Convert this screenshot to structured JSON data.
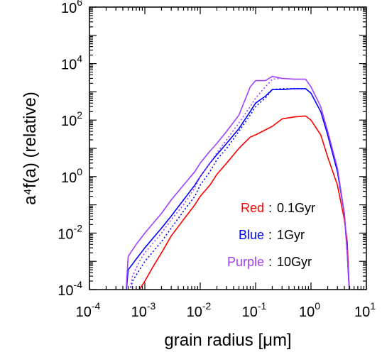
{
  "chart_data": {
    "type": "line",
    "title": "",
    "xlabel": "grain radius [μm]",
    "ylabel": "a⁴f(a) (relative)",
    "xscale": "log",
    "yscale": "log",
    "xlim": [
      0.0001,
      10
    ],
    "ylim": [
      0.0001,
      1000000
    ],
    "grid": false,
    "x_ticks": [
      {
        "value": 0.0001,
        "base": "10",
        "exp": "-4"
      },
      {
        "value": 0.001,
        "base": "10",
        "exp": "-3"
      },
      {
        "value": 0.01,
        "base": "10",
        "exp": "-2"
      },
      {
        "value": 0.1,
        "base": "10",
        "exp": "-1"
      },
      {
        "value": 1,
        "base": "10",
        "exp": "0"
      },
      {
        "value": 10,
        "base": "10",
        "exp": "1"
      }
    ],
    "y_ticks": [
      {
        "value": 0.0001,
        "base": "10",
        "exp": "-4"
      },
      {
        "value": 0.01,
        "base": "10",
        "exp": "-2"
      },
      {
        "value": 1,
        "base": "10",
        "exp": "0"
      },
      {
        "value": 100,
        "base": "10",
        "exp": "2"
      },
      {
        "value": 10000,
        "base": "10",
        "exp": "4"
      },
      {
        "value": 1000000,
        "base": "10",
        "exp": "6"
      }
    ],
    "legend": {
      "placement": "bottom-right",
      "entries": [
        {
          "label": "Red",
          "sep": ":",
          "value": "0.1Gyr",
          "color": "#ff0000"
        },
        {
          "label": "Blue",
          "sep": ":",
          "value": "1Gyr",
          "color": "#0000ff"
        },
        {
          "label": "Purple",
          "sep": ":",
          "value": "10Gyr",
          "color": "#a040ff"
        }
      ]
    },
    "series": [
      {
        "color": "#ff0000",
        "style": "solid",
        "points": [
          [
            0.00065,
            6e-05
          ],
          [
            0.0008,
            0.0001
          ],
          [
            0.001,
            0.0002
          ],
          [
            0.0015,
            0.0008
          ],
          [
            0.002,
            0.002
          ],
          [
            0.003,
            0.008
          ],
          [
            0.005,
            0.03
          ],
          [
            0.008,
            0.1
          ],
          [
            0.01,
            0.2
          ],
          [
            0.015,
            0.5
          ],
          [
            0.02,
            1.2
          ],
          [
            0.03,
            3
          ],
          [
            0.05,
            10
          ],
          [
            0.08,
            25
          ],
          [
            0.1,
            30
          ],
          [
            0.15,
            45
          ],
          [
            0.2,
            60
          ],
          [
            0.3,
            110
          ],
          [
            0.5,
            130
          ],
          [
            0.8,
            140
          ],
          [
            1.0,
            100
          ],
          [
            1.5,
            30
          ],
          [
            2.0,
            5
          ],
          [
            3.0,
            0.5
          ],
          [
            4.0,
            0.03
          ],
          [
            4.5,
            0.005
          ],
          [
            5.0,
            5e-05
          ]
        ]
      },
      {
        "color": "#0000ff",
        "style": "solid",
        "points": [
          [
            0.00045,
            5e-05
          ],
          [
            0.0005,
            0.0005
          ],
          [
            0.0007,
            0.0012
          ],
          [
            0.001,
            0.003
          ],
          [
            0.002,
            0.015
          ],
          [
            0.003,
            0.04
          ],
          [
            0.005,
            0.15
          ],
          [
            0.008,
            0.5
          ],
          [
            0.01,
            1
          ],
          [
            0.015,
            3
          ],
          [
            0.02,
            6
          ],
          [
            0.03,
            15
          ],
          [
            0.05,
            50
          ],
          [
            0.08,
            200
          ],
          [
            0.1,
            400
          ],
          [
            0.15,
            700
          ],
          [
            0.2,
            1200
          ],
          [
            0.3,
            1200
          ],
          [
            0.5,
            1300
          ],
          [
            0.8,
            1300
          ],
          [
            1.0,
            900
          ],
          [
            1.5,
            200
          ],
          [
            2.0,
            30
          ],
          [
            3.0,
            1.5
          ],
          [
            4.0,
            0.05
          ],
          [
            4.5,
            0.002
          ],
          [
            5.0,
            5e-05
          ]
        ]
      },
      {
        "color": "#0000ff",
        "style": "dotted",
        "points": [
          [
            0.0005,
            5e-05
          ],
          [
            0.0006,
            0.0002
          ],
          [
            0.0008,
            0.0005
          ],
          [
            0.001,
            0.001
          ],
          [
            0.002,
            0.005
          ],
          [
            0.003,
            0.015
          ],
          [
            0.005,
            0.06
          ],
          [
            0.008,
            0.2
          ],
          [
            0.01,
            0.5
          ],
          [
            0.015,
            1.5
          ],
          [
            0.02,
            4
          ],
          [
            0.03,
            10
          ],
          [
            0.05,
            40
          ],
          [
            0.08,
            150
          ],
          [
            0.1,
            300
          ],
          [
            0.15,
            600
          ],
          [
            0.2,
            1200
          ],
          [
            0.3,
            1300
          ],
          [
            0.5,
            1300
          ],
          [
            0.8,
            1300
          ]
        ]
      },
      {
        "color": "#a040ff",
        "style": "solid",
        "points": [
          [
            0.00045,
            5e-05
          ],
          [
            0.0005,
            0.0015
          ],
          [
            0.0007,
            0.004
          ],
          [
            0.001,
            0.01
          ],
          [
            0.002,
            0.05
          ],
          [
            0.003,
            0.15
          ],
          [
            0.005,
            0.5
          ],
          [
            0.008,
            1.5
          ],
          [
            0.01,
            3
          ],
          [
            0.015,
            8
          ],
          [
            0.02,
            15
          ],
          [
            0.03,
            40
          ],
          [
            0.05,
            150
          ],
          [
            0.08,
            1500
          ],
          [
            0.1,
            2500
          ],
          [
            0.15,
            2500
          ],
          [
            0.2,
            3500
          ],
          [
            0.3,
            3000
          ],
          [
            0.5,
            2800
          ],
          [
            0.8,
            2800
          ],
          [
            1.0,
            1500
          ],
          [
            1.5,
            300
          ],
          [
            2.0,
            40
          ],
          [
            3.0,
            2
          ],
          [
            4.0,
            0.05
          ],
          [
            4.5,
            0.002
          ],
          [
            5.0,
            5e-05
          ]
        ]
      },
      {
        "color": "#a040ff",
        "style": "dotted",
        "points": [
          [
            0.0005,
            5e-05
          ],
          [
            0.0006,
            0.0003
          ],
          [
            0.0008,
            0.001
          ],
          [
            0.001,
            0.002
          ],
          [
            0.002,
            0.01
          ],
          [
            0.003,
            0.03
          ],
          [
            0.005,
            0.1
          ],
          [
            0.008,
            0.4
          ],
          [
            0.01,
            1
          ],
          [
            0.015,
            3
          ],
          [
            0.02,
            7
          ],
          [
            0.03,
            20
          ],
          [
            0.05,
            80
          ],
          [
            0.08,
            300
          ],
          [
            0.1,
            600
          ],
          [
            0.15,
            1500
          ],
          [
            0.2,
            2800
          ],
          [
            0.3,
            3000
          ]
        ]
      }
    ]
  }
}
